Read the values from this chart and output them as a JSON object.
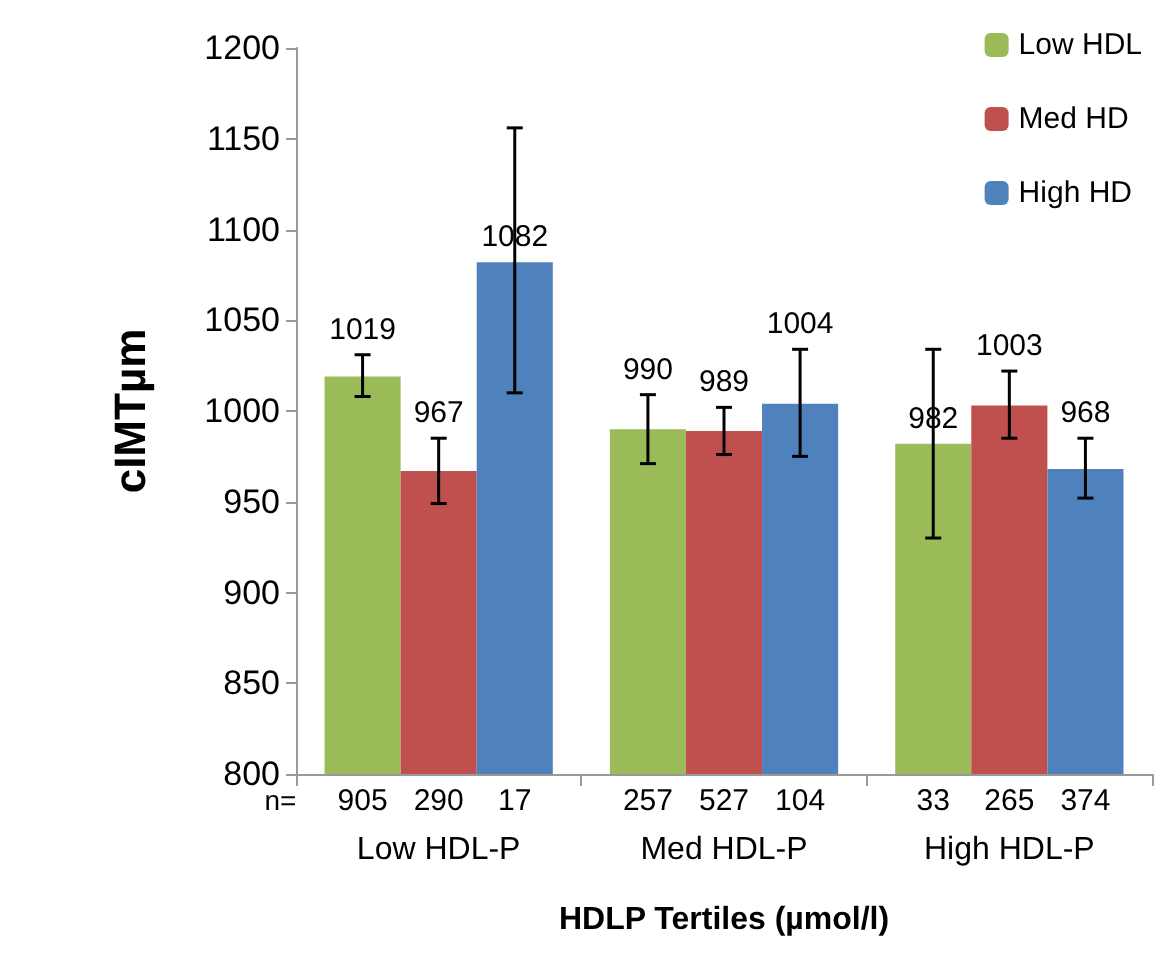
{
  "chart_data": {
    "type": "bar",
    "xlabel": "HDLP Tertiles (µmol/l)",
    "ylabel": "cIMTµm",
    "categories": [
      "Low HDL-P",
      "Med HDL-P",
      "High HDL-P"
    ],
    "series": [
      {
        "name": "Low HDL",
        "color": "#9bbb59",
        "values": [
          1019,
          990,
          982
        ],
        "errors": [
          [
            1008,
            1031
          ],
          [
            971,
            1009
          ],
          [
            930,
            1034
          ]
        ]
      },
      {
        "name": "Med HD",
        "color": "#c0504d",
        "values": [
          967,
          989,
          1003
        ],
        "errors": [
          [
            949,
            985
          ],
          [
            976,
            1002
          ],
          [
            985,
            1022
          ]
        ]
      },
      {
        "name": "High HD",
        "color": "#4f81bd",
        "values": [
          1082,
          1004,
          968
        ],
        "errors": [
          [
            1010,
            1156
          ],
          [
            975,
            1034
          ],
          [
            952,
            985
          ]
        ]
      }
    ],
    "ylim": [
      800,
      1200
    ],
    "yticks": [
      800,
      850,
      900,
      950,
      1000,
      1050,
      1100,
      1150,
      1200
    ],
    "data_labels": true,
    "grid": false,
    "legend": "top right",
    "annotations": [
      "n=",
      "905",
      "290",
      "17",
      "257",
      "527",
      "104",
      "33",
      "265",
      "374"
    ]
  }
}
